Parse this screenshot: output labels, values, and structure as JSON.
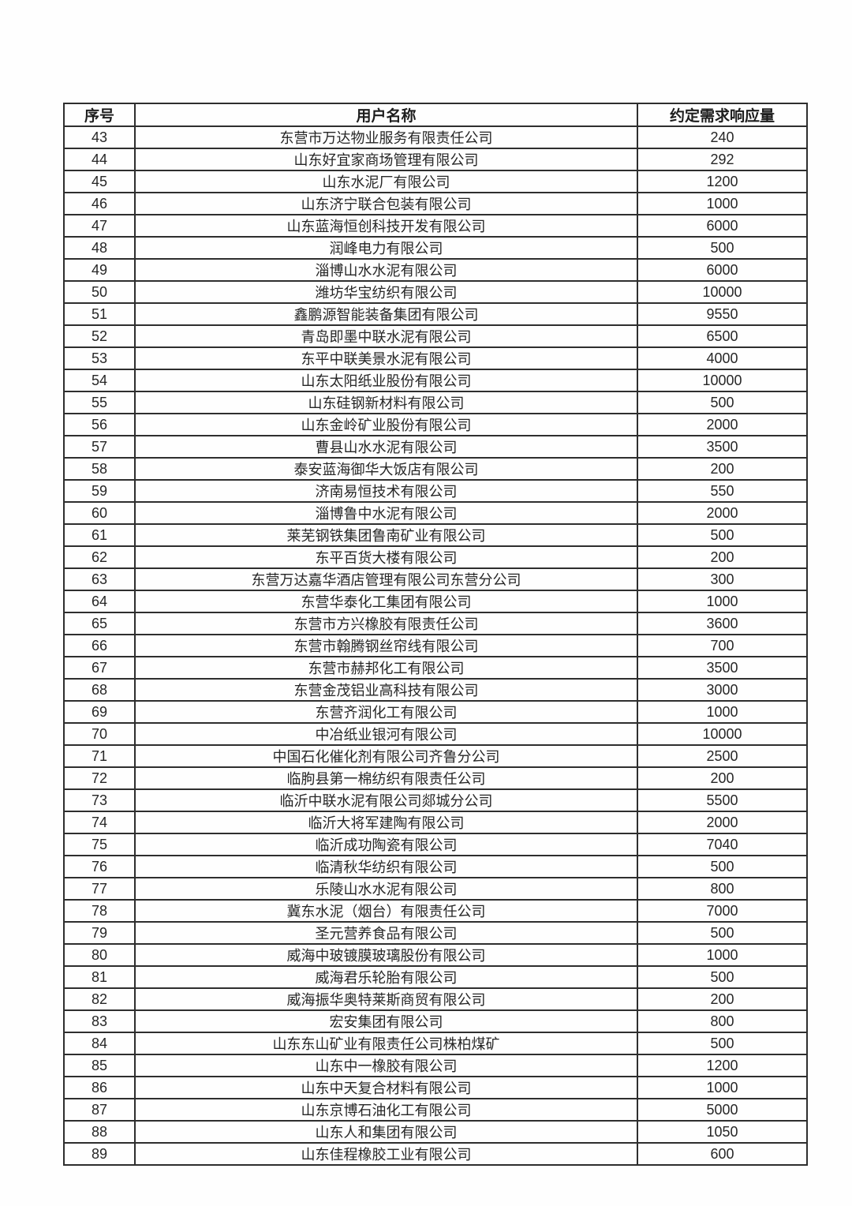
{
  "table": {
    "headers": [
      "序号",
      "用户名称",
      "约定需求响应量"
    ],
    "rows": [
      {
        "no": "43",
        "name": "东营市万达物业服务有限责任公司",
        "amount": "240"
      },
      {
        "no": "44",
        "name": "山东好宜家商场管理有限公司",
        "amount": "292"
      },
      {
        "no": "45",
        "name": "山东水泥厂有限公司",
        "amount": "1200"
      },
      {
        "no": "46",
        "name": "山东济宁联合包装有限公司",
        "amount": "1000"
      },
      {
        "no": "47",
        "name": "山东蓝海恒创科技开发有限公司",
        "amount": "6000"
      },
      {
        "no": "48",
        "name": "润峰电力有限公司",
        "amount": "500"
      },
      {
        "no": "49",
        "name": "淄博山水水泥有限公司",
        "amount": "6000"
      },
      {
        "no": "50",
        "name": "潍坊华宝纺织有限公司",
        "amount": "10000"
      },
      {
        "no": "51",
        "name": "鑫鹏源智能装备集团有限公司",
        "amount": "9550"
      },
      {
        "no": "52",
        "name": "青岛即墨中联水泥有限公司",
        "amount": "6500"
      },
      {
        "no": "53",
        "name": "东平中联美景水泥有限公司",
        "amount": "4000"
      },
      {
        "no": "54",
        "name": "山东太阳纸业股份有限公司",
        "amount": "10000"
      },
      {
        "no": "55",
        "name": "山东硅钢新材料有限公司",
        "amount": "500"
      },
      {
        "no": "56",
        "name": "山东金岭矿业股份有限公司",
        "amount": "2000"
      },
      {
        "no": "57",
        "name": "曹县山水水泥有限公司",
        "amount": "3500"
      },
      {
        "no": "58",
        "name": "泰安蓝海御华大饭店有限公司",
        "amount": "200"
      },
      {
        "no": "59",
        "name": "济南易恒技术有限公司",
        "amount": "550"
      },
      {
        "no": "60",
        "name": "淄博鲁中水泥有限公司",
        "amount": "2000"
      },
      {
        "no": "61",
        "name": "莱芜钢铁集团鲁南矿业有限公司",
        "amount": "500"
      },
      {
        "no": "62",
        "name": "东平百货大楼有限公司",
        "amount": "200"
      },
      {
        "no": "63",
        "name": "东营万达嘉华酒店管理有限公司东营分公司",
        "amount": "300"
      },
      {
        "no": "64",
        "name": "东营华泰化工集团有限公司",
        "amount": "1000"
      },
      {
        "no": "65",
        "name": "东营市方兴橡胶有限责任公司",
        "amount": "3600"
      },
      {
        "no": "66",
        "name": "东营市翰腾钢丝帘线有限公司",
        "amount": "700"
      },
      {
        "no": "67",
        "name": "东营市赫邦化工有限公司",
        "amount": "3500"
      },
      {
        "no": "68",
        "name": "东营金茂铝业高科技有限公司",
        "amount": "3000"
      },
      {
        "no": "69",
        "name": "东营齐润化工有限公司",
        "amount": "1000"
      },
      {
        "no": "70",
        "name": "中冶纸业银河有限公司",
        "amount": "10000"
      },
      {
        "no": "71",
        "name": "中国石化催化剂有限公司齐鲁分公司",
        "amount": "2500"
      },
      {
        "no": "72",
        "name": "临朐县第一棉纺织有限责任公司",
        "amount": "200"
      },
      {
        "no": "73",
        "name": "临沂中联水泥有限公司郯城分公司",
        "amount": "5500"
      },
      {
        "no": "74",
        "name": "临沂大将军建陶有限公司",
        "amount": "2000"
      },
      {
        "no": "75",
        "name": "临沂成功陶瓷有限公司",
        "amount": "7040"
      },
      {
        "no": "76",
        "name": "临清秋华纺织有限公司",
        "amount": "500"
      },
      {
        "no": "77",
        "name": "乐陵山水水泥有限公司",
        "amount": "800"
      },
      {
        "no": "78",
        "name": "冀东水泥（烟台）有限责任公司",
        "amount": "7000"
      },
      {
        "no": "79",
        "name": "圣元营养食品有限公司",
        "amount": "500"
      },
      {
        "no": "80",
        "name": "威海中玻镀膜玻璃股份有限公司",
        "amount": "1000"
      },
      {
        "no": "81",
        "name": "威海君乐轮胎有限公司",
        "amount": "500"
      },
      {
        "no": "82",
        "name": "威海振华奥特莱斯商贸有限公司",
        "amount": "200"
      },
      {
        "no": "83",
        "name": "宏安集团有限公司",
        "amount": "800"
      },
      {
        "no": "84",
        "name": "山东东山矿业有限责任公司株柏煤矿",
        "amount": "500"
      },
      {
        "no": "85",
        "name": "山东中一橡胶有限公司",
        "amount": "1200"
      },
      {
        "no": "86",
        "name": "山东中天复合材料有限公司",
        "amount": "1000"
      },
      {
        "no": "87",
        "name": "山东京博石油化工有限公司",
        "amount": "5000"
      },
      {
        "no": "88",
        "name": "山东人和集团有限公司",
        "amount": "1050"
      },
      {
        "no": "89",
        "name": "山东佳程橡胶工业有限公司",
        "amount": "600"
      }
    ]
  }
}
